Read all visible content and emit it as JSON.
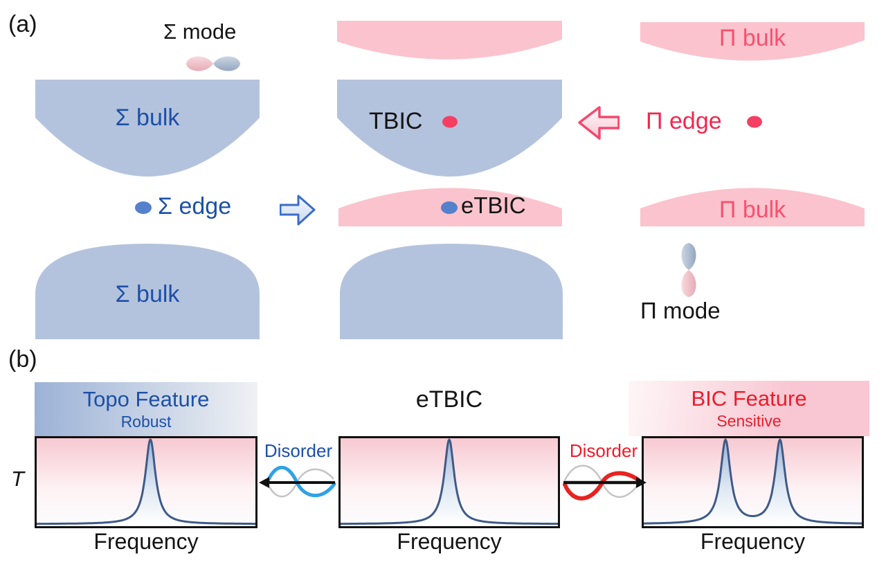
{
  "panel_a": {
    "label": "(a)",
    "sigma_mode": "Σ mode",
    "sigma_bulk_top": "Σ bulk",
    "sigma_bulk_bottom": "Σ bulk",
    "tbic": "TBIC",
    "etbic": "eTBIC",
    "sigma_edge": "Σ edge",
    "pi_bulk_top": "Π bulk",
    "pi_bulk_mid": "Π bulk",
    "pi_edge": "Π edge",
    "pi_mode": "Π mode"
  },
  "panel_b": {
    "label": "(b)",
    "topo": {
      "title": "Topo Feature",
      "subtitle": "Robust"
    },
    "etbic_title": "eTBIC",
    "bic": {
      "title": "BIC Feature",
      "subtitle": "Sensitive"
    },
    "disorder_left": "Disorder",
    "disorder_right": "Disorder",
    "t_label": "T"
  },
  "colors": {
    "blue_band": "#b4c3dd",
    "pink_band": "#fbc3cd",
    "blue_text": "#1c50a8",
    "pink_bulk_text": "#f7516f",
    "pi_edge_text": "#f5264f",
    "bic_red_text": "#ed1c29",
    "red_dot": "#f43f63",
    "blue_dot": "#5580cc",
    "curve_stroke": "#3e5a88",
    "wave_blue": "#2ea2e5",
    "wave_red": "#e8231f",
    "wave_gray": "#c4c4c4"
  },
  "chart_data": [
    {
      "type": "line",
      "title": "Topo Feature (Robust)",
      "xlabel": "Frequency",
      "ylabel": "T",
      "ylim": [
        0,
        1
      ],
      "grid": false,
      "peaks": [
        {
          "center_frac": 0.52,
          "gamma_frac": 0.028,
          "height_frac": 1.0
        }
      ],
      "description": "Single transmission resonance peak, robust against disorder"
    },
    {
      "type": "line",
      "title": "eTBIC",
      "xlabel": "Frequency",
      "ylabel": "T",
      "ylim": [
        0,
        1
      ],
      "grid": false,
      "peaks": [
        {
          "center_frac": 0.5,
          "gamma_frac": 0.028,
          "height_frac": 1.0
        }
      ],
      "description": "Single transmission resonance peak of the eTBIC state"
    },
    {
      "type": "line",
      "title": "BIC Feature (Sensitive)",
      "xlabel": "Frequency",
      "ylabel": "T",
      "ylim": [
        0,
        1
      ],
      "grid": false,
      "peaks": [
        {
          "center_frac": 0.375,
          "gamma_frac": 0.028,
          "height_frac": 1.0
        },
        {
          "center_frac": 0.625,
          "gamma_frac": 0.028,
          "height_frac": 1.0
        }
      ],
      "description": "Peak splits into two resonances under disorder (BIC sensitivity)"
    }
  ]
}
